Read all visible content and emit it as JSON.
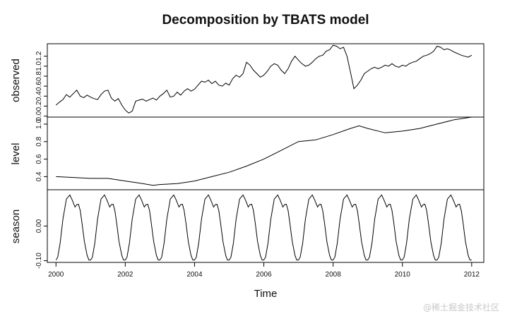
{
  "chart_data": {
    "type": "line",
    "title": "Decomposition by TBATS model",
    "xlabel": "Time",
    "xlim": [
      1999.75,
      2012.35
    ],
    "x_ticks": [
      "2000",
      "2002",
      "2004",
      "2006",
      "2008",
      "2010",
      "2012"
    ],
    "x_tick_values": [
      2000,
      2002,
      2004,
      2006,
      2008,
      2010,
      2012
    ],
    "panels": [
      {
        "name": "observed",
        "ylabel": "observed",
        "ylim": [
          -0.02,
          1.45
        ],
        "y_ticks": [
          "0.0",
          "0.2",
          "0.4",
          "0.6",
          "0.8",
          "1.0",
          "1.2"
        ],
        "y_tick_values": [
          0.0,
          0.2,
          0.4,
          0.6,
          0.8,
          1.0,
          1.2
        ],
        "series": [
          {
            "x": [
              2000.0,
              2000.1,
              2000.2,
              2000.3,
              2000.4,
              2000.5,
              2000.6,
              2000.7,
              2000.8,
              2000.9,
              2001.0,
              2001.1,
              2001.2,
              2001.3,
              2001.4,
              2001.5,
              2001.6,
              2001.7,
              2001.8,
              2001.9,
              2002.0,
              2002.1,
              2002.2,
              2002.3,
              2002.4,
              2002.5,
              2002.6,
              2002.7,
              2002.8,
              2002.9,
              2003.0,
              2003.1,
              2003.2,
              2003.3,
              2003.4,
              2003.5,
              2003.6,
              2003.7,
              2003.8,
              2003.9,
              2004.0,
              2004.1,
              2004.2,
              2004.3,
              2004.4,
              2004.5,
              2004.6,
              2004.7,
              2004.8,
              2004.9,
              2005.0,
              2005.1,
              2005.2,
              2005.3,
              2005.4,
              2005.5,
              2005.6,
              2005.7,
              2005.8,
              2005.9,
              2006.0,
              2006.1,
              2006.2,
              2006.3,
              2006.4,
              2006.5,
              2006.6,
              2006.7,
              2006.8,
              2006.9,
              2007.0,
              2007.1,
              2007.2,
              2007.3,
              2007.4,
              2007.5,
              2007.6,
              2007.7,
              2007.8,
              2007.9,
              2008.0,
              2008.1,
              2008.2,
              2008.3,
              2008.4,
              2008.5,
              2008.6,
              2008.7,
              2008.8,
              2008.9,
              2009.0,
              2009.1,
              2009.2,
              2009.3,
              2009.4,
              2009.5,
              2009.6,
              2009.7,
              2009.8,
              2009.9,
              2010.0,
              2010.1,
              2010.2,
              2010.3,
              2010.4,
              2010.5,
              2010.6,
              2010.7,
              2010.8,
              2010.9,
              2011.0,
              2011.1,
              2011.2,
              2011.3,
              2011.4,
              2011.5,
              2011.6,
              2011.7,
              2011.8,
              2011.9,
              2012.0
            ],
            "y": [
              0.22,
              0.28,
              0.33,
              0.43,
              0.38,
              0.45,
              0.52,
              0.4,
              0.37,
              0.42,
              0.38,
              0.35,
              0.33,
              0.43,
              0.5,
              0.52,
              0.36,
              0.3,
              0.35,
              0.22,
              0.12,
              0.06,
              0.1,
              0.3,
              0.32,
              0.34,
              0.3,
              0.33,
              0.36,
              0.32,
              0.4,
              0.45,
              0.52,
              0.38,
              0.4,
              0.48,
              0.42,
              0.5,
              0.55,
              0.5,
              0.54,
              0.62,
              0.7,
              0.68,
              0.72,
              0.65,
              0.7,
              0.62,
              0.6,
              0.66,
              0.62,
              0.75,
              0.82,
              0.78,
              0.85,
              1.08,
              1.02,
              0.92,
              0.85,
              0.78,
              0.82,
              0.9,
              1.0,
              1.05,
              1.02,
              0.92,
              0.85,
              0.95,
              1.1,
              1.2,
              1.12,
              1.05,
              1.0,
              1.02,
              1.08,
              1.15,
              1.2,
              1.22,
              1.3,
              1.33,
              1.42,
              1.4,
              1.35,
              1.38,
              1.2,
              0.88,
              0.55,
              0.62,
              0.72,
              0.85,
              0.9,
              0.95,
              0.98,
              0.95,
              0.98,
              1.02,
              1.0,
              1.05,
              1.0,
              0.98,
              1.02,
              1.0,
              1.05,
              1.08,
              1.1,
              1.15,
              1.2,
              1.22,
              1.25,
              1.3,
              1.4,
              1.38,
              1.33,
              1.35,
              1.32,
              1.28,
              1.25,
              1.22,
              1.2,
              1.18,
              1.22
            ]
          }
        ]
      },
      {
        "name": "level",
        "ylabel": "level",
        "ylim": [
          0.25,
          1.08
        ],
        "y_ticks": [
          "0.4",
          "0.6",
          "0.8",
          "1.0"
        ],
        "y_tick_values": [
          0.4,
          0.6,
          0.8,
          1.0
        ],
        "series": [
          {
            "x": [
              2000.0,
              2000.5,
              2001.0,
              2001.5,
              2002.0,
              2002.5,
              2002.8,
              2003.0,
              2003.5,
              2004.0,
              2004.5,
              2005.0,
              2005.5,
              2006.0,
              2006.5,
              2007.0,
              2007.5,
              2008.0,
              2008.5,
              2008.75,
              2009.0,
              2009.5,
              2010.0,
              2010.5,
              2011.0,
              2011.5,
              2012.0
            ],
            "y": [
              0.4,
              0.39,
              0.38,
              0.38,
              0.35,
              0.32,
              0.3,
              0.31,
              0.32,
              0.35,
              0.4,
              0.45,
              0.52,
              0.6,
              0.7,
              0.8,
              0.82,
              0.88,
              0.95,
              0.98,
              0.95,
              0.9,
              0.92,
              0.95,
              1.0,
              1.05,
              1.08
            ]
          }
        ]
      },
      {
        "name": "season",
        "ylabel": "season",
        "ylim": [
          -0.105,
          0.105
        ],
        "y_ticks": [
          "-0.10",
          "0.00"
        ],
        "y_tick_values": [
          -0.1,
          0.0
        ],
        "seasonal_period_years": 1,
        "seasonal_cycle": {
          "phase": [
            0.0,
            0.05,
            0.12,
            0.2,
            0.3,
            0.4,
            0.47,
            0.55,
            0.6,
            0.65,
            0.7,
            0.75,
            0.82,
            0.9,
            0.95,
            1.0
          ],
          "value": [
            -0.098,
            -0.09,
            -0.05,
            0.02,
            0.078,
            0.09,
            0.075,
            0.055,
            0.062,
            0.063,
            0.045,
            0.01,
            -0.045,
            -0.085,
            -0.098,
            -0.098
          ]
        }
      }
    ]
  },
  "watermark": "@稀土掘金技术社区"
}
